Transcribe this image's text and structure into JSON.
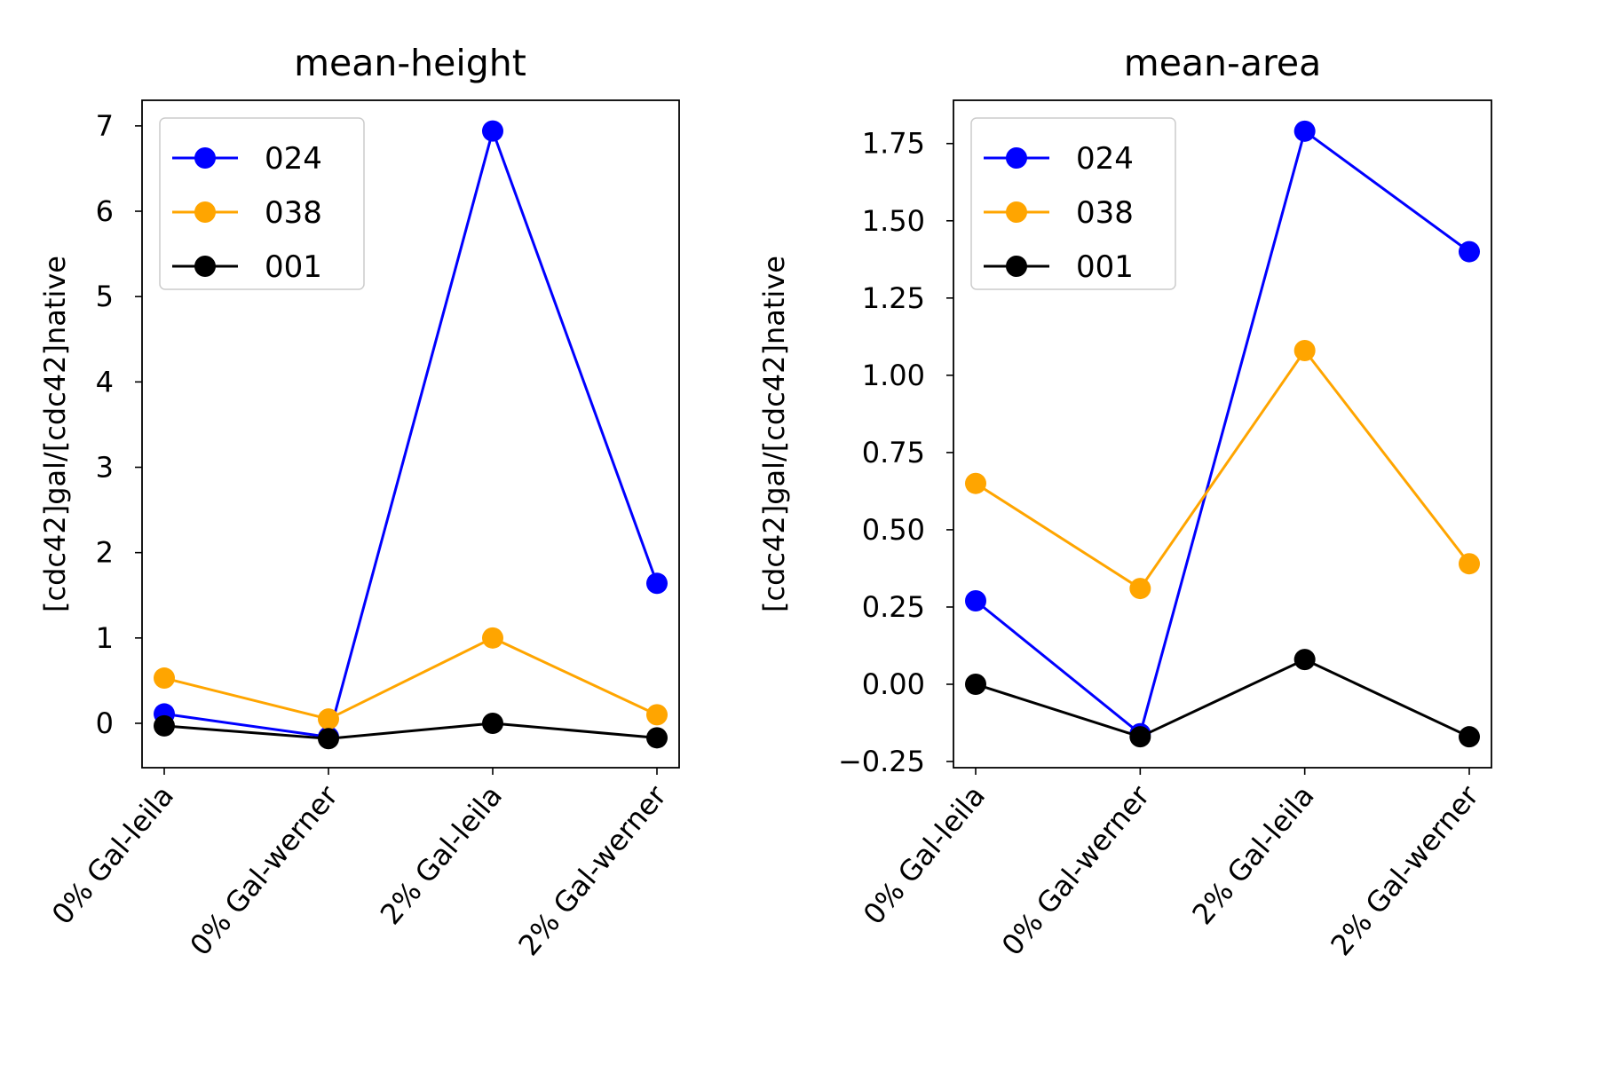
{
  "chart_data": [
    {
      "type": "line",
      "title": "mean-height",
      "xlabel": "",
      "ylabel": "[cdc42]gal/[cdc42]native",
      "categories": [
        "0% Gal-leila",
        "0% Gal-werner",
        "2% Gal-leila",
        "2% Gal-werner"
      ],
      "ylim": [
        -0.52,
        7.3
      ],
      "yticks": [
        0,
        1,
        2,
        3,
        4,
        5,
        6,
        7
      ],
      "ytick_labels": [
        "0",
        "1",
        "2",
        "3",
        "4",
        "5",
        "6",
        "7"
      ],
      "grid": false,
      "legend": "top-left",
      "series": [
        {
          "name": "024",
          "color": "#0000ff",
          "values": [
            0.11,
            -0.16,
            6.94,
            1.64
          ]
        },
        {
          "name": "038",
          "color": "#ffa500",
          "values": [
            0.53,
            0.05,
            1.0,
            0.1
          ]
        },
        {
          "name": "001",
          "color": "#000000",
          "values": [
            -0.03,
            -0.18,
            0.0,
            -0.17
          ]
        }
      ]
    },
    {
      "type": "line",
      "title": "mean-area",
      "xlabel": "",
      "ylabel": "[cdc42]gal/[cdc42]native",
      "categories": [
        "0% Gal-leila",
        "0% Gal-werner",
        "2% Gal-leila",
        "2% Gal-werner"
      ],
      "ylim": [
        -0.27,
        1.89
      ],
      "yticks": [
        -0.25,
        0,
        0.25,
        0.5,
        0.75,
        1.0,
        1.25,
        1.5,
        1.75
      ],
      "ytick_labels": [
        "−0.25",
        "0.00",
        "0.25",
        "0.50",
        "0.75",
        "1.00",
        "1.25",
        "1.50",
        "1.75"
      ],
      "grid": false,
      "legend": "top-left",
      "series": [
        {
          "name": "024",
          "color": "#0000ff",
          "values": [
            0.27,
            -0.16,
            1.79,
            1.4
          ]
        },
        {
          "name": "038",
          "color": "#ffa500",
          "values": [
            0.65,
            0.31,
            1.08,
            0.39
          ]
        },
        {
          "name": "001",
          "color": "#000000",
          "values": [
            0.0,
            -0.17,
            0.08,
            -0.17
          ]
        }
      ]
    }
  ]
}
